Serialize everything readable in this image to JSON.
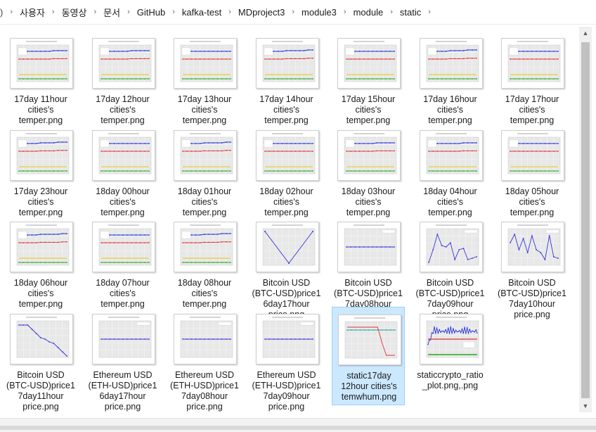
{
  "breadcrumb": {
    "prefix": ")",
    "items": [
      "사용자",
      "동영상",
      "문서",
      "GitHub",
      "kafka-test",
      "MDproject3",
      "module3",
      "module",
      "static"
    ]
  },
  "files": [
    {
      "lines": [
        "17day 11hour",
        "cities's",
        "temper.png"
      ],
      "kind": "temp"
    },
    {
      "lines": [
        "17day 12hour",
        "cities's",
        "temper.png"
      ],
      "kind": "temp"
    },
    {
      "lines": [
        "17day 13hour",
        "cities's",
        "temper.png"
      ],
      "kind": "temp"
    },
    {
      "lines": [
        "17day 14hour",
        "cities's",
        "temper.png"
      ],
      "kind": "temp"
    },
    {
      "lines": [
        "17day 15hour",
        "cities's",
        "temper.png"
      ],
      "kind": "temp"
    },
    {
      "lines": [
        "17day 16hour",
        "cities's",
        "temper.png"
      ],
      "kind": "temp"
    },
    {
      "lines": [
        "17day 17hour",
        "cities's",
        "temper.png"
      ],
      "kind": "temp"
    },
    {
      "lines": [
        "17day 23hour",
        "cities's",
        "temper.png"
      ],
      "kind": "temp"
    },
    {
      "lines": [
        "18day 00hour",
        "cities's",
        "temper.png"
      ],
      "kind": "temp"
    },
    {
      "lines": [
        "18day 01hour",
        "cities's",
        "temper.png"
      ],
      "kind": "temp"
    },
    {
      "lines": [
        "18day 02hour",
        "cities's",
        "temper.png"
      ],
      "kind": "temp"
    },
    {
      "lines": [
        "18day 03hour",
        "cities's",
        "temper.png"
      ],
      "kind": "temp"
    },
    {
      "lines": [
        "18day 04hour",
        "cities's",
        "temper.png"
      ],
      "kind": "temp"
    },
    {
      "lines": [
        "18day 05hour",
        "cities's",
        "temper.png"
      ],
      "kind": "temp"
    },
    {
      "lines": [
        "18day 06hour",
        "cities's",
        "temper.png"
      ],
      "kind": "temp"
    },
    {
      "lines": [
        "18day 07hour",
        "cities's",
        "temper.png"
      ],
      "kind": "temp"
    },
    {
      "lines": [
        "18day 08hour",
        "cities's",
        "temper.png"
      ],
      "kind": "temp"
    },
    {
      "lines": [
        "Bitcoin USD",
        "(BTC-USD)price1",
        "6day17hour",
        "price.png"
      ],
      "kind": "btc-v"
    },
    {
      "lines": [
        "Bitcoin USD",
        "(BTC-USD)price1",
        "7day08hour",
        "price.png"
      ],
      "kind": "flat"
    },
    {
      "lines": [
        "Bitcoin USD",
        "(BTC-USD)price1",
        "7day09hour",
        "price.png"
      ],
      "kind": "btc-jag"
    },
    {
      "lines": [
        "Bitcoin USD",
        "(BTC-USD)price1",
        "7day10hour",
        "price.png"
      ],
      "kind": "btc-jag2"
    },
    {
      "lines": [
        "Bitcoin USD",
        "(BTC-USD)price1",
        "7day11hour",
        "price.png"
      ],
      "kind": "btc-down"
    },
    {
      "lines": [
        "Ethereum USD",
        "(ETH-USD)price1",
        "6day17hour",
        "price.png"
      ],
      "kind": "flat"
    },
    {
      "lines": [
        "Ethereum USD",
        "(ETH-USD)price1",
        "7day08hour",
        "price.png"
      ],
      "kind": "flat"
    },
    {
      "lines": [
        "Ethereum USD",
        "(ETH-USD)price1",
        "7day09hour",
        "price.png"
      ],
      "kind": "flat"
    },
    {
      "lines": [
        "static17day",
        "12hour cities's",
        "temwhum.png"
      ],
      "kind": "temhum",
      "selected": true
    },
    {
      "lines": [
        "staticcrypto_ratio",
        "_plot.png,.png"
      ],
      "kind": "ratio"
    }
  ]
}
